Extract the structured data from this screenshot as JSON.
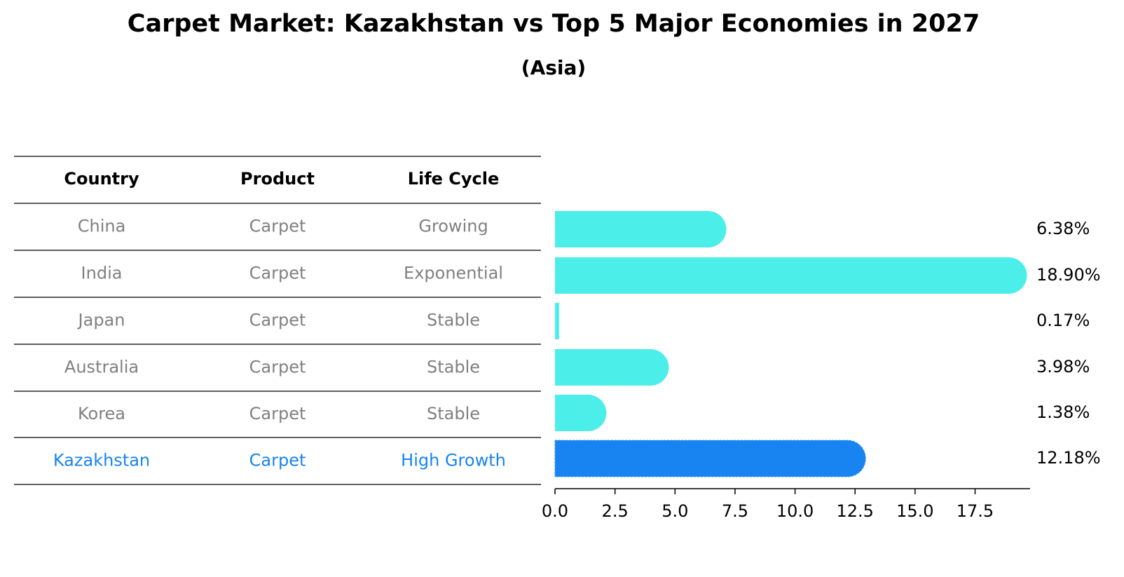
{
  "title": "Carpet Market: Kazakhstan vs Top 5 Major Economies in 2027",
  "subtitle": "(Asia)",
  "table": {
    "headers": [
      "Country",
      "Product",
      "Life Cycle"
    ],
    "rows": [
      [
        "China",
        "Carpet",
        "Growing"
      ],
      [
        "India",
        "Carpet",
        "Exponential"
      ],
      [
        "Japan",
        "Carpet",
        "Stable"
      ],
      [
        "Australia",
        "Carpet",
        "Stable"
      ],
      [
        "Korea",
        "Carpet",
        "Stable"
      ],
      [
        "Kazakhstan",
        "Carpet",
        "High Growth"
      ]
    ],
    "highlight_row": 5
  },
  "colors": {
    "bar": "#4CEEEA",
    "highlight": "#1784F2",
    "row_text": "#808080",
    "highlight_text": "#1784F2"
  },
  "chart_data": {
    "type": "bar",
    "orientation": "horizontal",
    "categories": [
      "China",
      "India",
      "Japan",
      "Australia",
      "Korea",
      "Kazakhstan"
    ],
    "values": [
      6.38,
      18.9,
      0.17,
      3.98,
      1.38,
      12.18
    ],
    "value_labels": [
      "6.38%",
      "18.90%",
      "0.17%",
      "3.98%",
      "1.38%",
      "12.18%"
    ],
    "xticks": [
      0,
      2.5,
      5,
      7.5,
      10,
      12.5,
      15,
      17.5
    ],
    "xtick_labels": [
      "0.0",
      "2.5",
      "5.0",
      "7.5",
      "10.0",
      "12.5",
      "15.0",
      "17.5"
    ],
    "xlim": [
      0,
      19.85
    ],
    "grid": false
  }
}
